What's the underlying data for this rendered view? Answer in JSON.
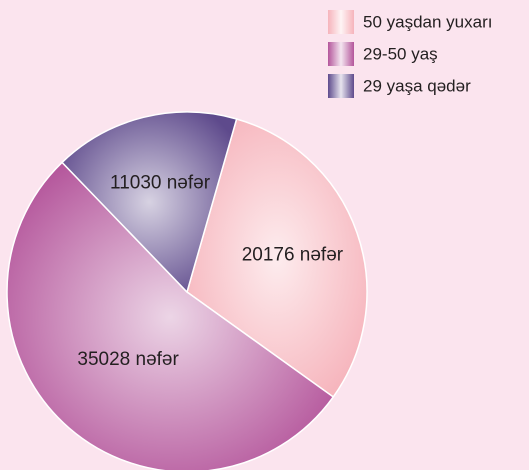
{
  "chart_data": {
    "type": "pie",
    "categories": [
      "50 yaşdan yuxarı",
      "29-50 yaş",
      "29 yaşa qədər"
    ],
    "values": [
      20176,
      35028,
      11030
    ],
    "value_labels": [
      "20176 nəfər",
      "35028 nəfər",
      "11030 nəfər"
    ],
    "colors": [
      "#f6b3bb",
      "#b4559b",
      "#5e4a8c"
    ]
  }
}
